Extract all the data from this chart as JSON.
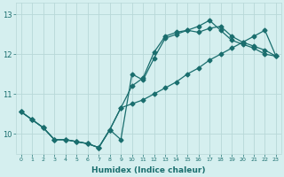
{
  "xlabel": "Humidex (Indice chaleur)",
  "bg_color": "#d5efef",
  "grid_color": "#b8d8d8",
  "line_color": "#1a6e6e",
  "xticks": [
    0,
    1,
    2,
    3,
    4,
    5,
    6,
    7,
    8,
    9,
    10,
    11,
    12,
    13,
    14,
    15,
    16,
    17,
    18,
    19,
    20,
    21,
    22,
    23
  ],
  "yticks": [
    10,
    11,
    12,
    13
  ],
  "ylim": [
    9.5,
    13.3
  ],
  "xlim": [
    -0.5,
    23.5
  ],
  "line1_x": [
    0,
    1,
    2,
    3,
    4,
    5,
    6,
    7,
    8,
    9,
    10,
    11,
    12,
    13,
    14,
    15,
    16,
    17,
    18,
    19,
    20,
    21,
    22,
    23
  ],
  "line1_y": [
    10.55,
    10.35,
    10.15,
    9.85,
    9.85,
    9.8,
    9.75,
    9.65,
    10.1,
    9.85,
    11.5,
    11.35,
    11.9,
    12.4,
    12.5,
    12.6,
    12.55,
    12.65,
    12.7,
    12.45,
    12.3,
    12.2,
    12.1,
    11.95
  ],
  "line2_x": [
    0,
    1,
    2,
    3,
    4,
    5,
    6,
    7,
    8,
    9,
    10,
    11,
    12,
    13,
    14,
    15,
    16,
    17,
    18,
    19,
    20,
    21,
    22,
    23
  ],
  "line2_y": [
    10.55,
    10.35,
    10.15,
    9.85,
    9.85,
    9.8,
    9.75,
    9.65,
    10.1,
    10.65,
    11.2,
    11.4,
    12.05,
    12.45,
    12.55,
    12.6,
    12.7,
    12.85,
    12.6,
    12.35,
    12.25,
    12.15,
    12.0,
    11.95
  ],
  "line3_x": [
    0,
    1,
    2,
    3,
    4,
    5,
    6,
    7,
    8,
    9,
    10,
    11,
    12,
    13,
    14,
    15,
    16,
    17,
    18,
    19,
    20,
    21,
    22,
    23
  ],
  "line3_y": [
    10.55,
    10.35,
    10.15,
    9.85,
    9.85,
    9.8,
    9.75,
    9.65,
    10.1,
    10.65,
    10.75,
    10.85,
    11.0,
    11.15,
    11.3,
    11.5,
    11.65,
    11.85,
    12.0,
    12.15,
    12.3,
    12.45,
    12.6,
    11.95
  ],
  "marker_size": 2.5,
  "line_width": 0.9,
  "xlabel_fontsize": 6.5,
  "xlabel_fontweight": "bold",
  "ytick_fontsize": 6,
  "xtick_fontsize": 4.5
}
